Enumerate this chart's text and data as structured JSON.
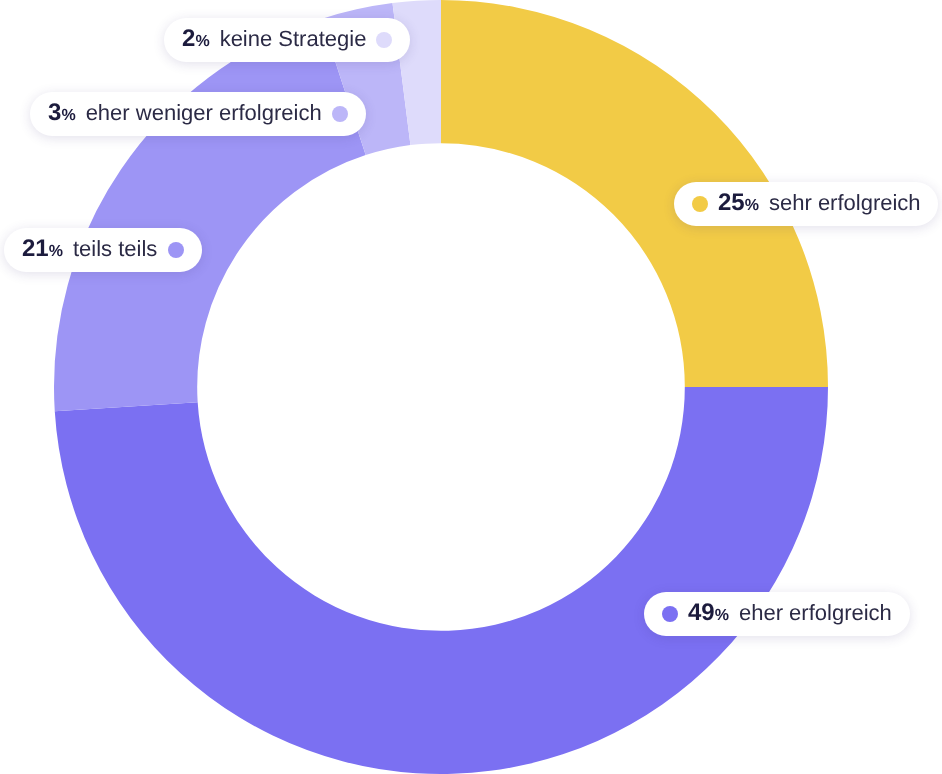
{
  "chart_data": {
    "type": "donut",
    "categories": [
      "sehr erfolgreich",
      "eher erfolgreich",
      "teils teils",
      "eher weniger erfolgreich",
      "keine Strategie"
    ],
    "values": [
      25,
      49,
      21,
      3,
      2
    ],
    "value_labels": [
      "25%",
      "49%",
      "21%",
      "3%",
      "2%"
    ],
    "colors": [
      "#f2cb46",
      "#7b70f2",
      "#9d95f5",
      "#bcb6f8",
      "#dedbfb"
    ],
    "legend": "top left"
  }
}
